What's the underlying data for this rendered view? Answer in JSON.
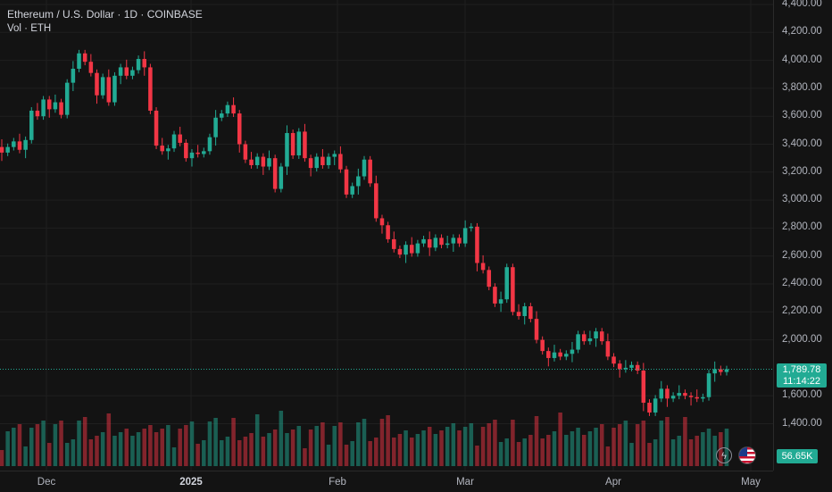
{
  "header": {
    "title": "Ethereum / U.S. Dollar · 1D · COINBASE",
    "volume_label": "Vol · ETH"
  },
  "y_axis": {
    "ticks": [
      "4,400.00",
      "4,200.00",
      "4,000.00",
      "3,800.00",
      "3,600.00",
      "3,400.00",
      "3,200.00",
      "3,000.00",
      "2,800.00",
      "2,600.00",
      "2,400.00",
      "2,200.00",
      "2,000.00",
      "1,600.00",
      "1,400.00"
    ]
  },
  "x_axis": {
    "ticks": [
      {
        "label": "Dec"
      },
      {
        "label": "2025",
        "bold": true
      },
      {
        "label": "Feb"
      },
      {
        "label": "Mar"
      },
      {
        "label": "Apr"
      },
      {
        "label": "May"
      }
    ]
  },
  "current_price": {
    "value": "1,789.78",
    "countdown": "11:14:22"
  },
  "volume_tag": "56.65K",
  "colors": {
    "up": "#22ab94",
    "down": "#f23645",
    "background": "#131313",
    "grid": "#1f1f1f",
    "up_vol": "#22ab9480",
    "down_vol": "#f2364580"
  },
  "icons": {
    "flash": "flash-icon",
    "flag": "us-flag-icon"
  },
  "chart_data": {
    "type": "candlestick",
    "symbol": "ETHUSD",
    "interval": "1D",
    "ylim": [
      1200,
      4400
    ],
    "candles": [
      {
        "o": 3380,
        "c": 3340
      },
      {
        "o": 3340,
        "c": 3380
      },
      {
        "o": 3380,
        "c": 3420
      },
      {
        "o": 3420,
        "c": 3360
      },
      {
        "o": 3360,
        "c": 3430
      },
      {
        "o": 3430,
        "c": 3640
      },
      {
        "o": 3640,
        "c": 3600
      },
      {
        "o": 3600,
        "c": 3720
      },
      {
        "o": 3720,
        "c": 3650
      },
      {
        "o": 3650,
        "c": 3700
      },
      {
        "o": 3700,
        "c": 3610
      },
      {
        "o": 3610,
        "c": 3840
      },
      {
        "o": 3840,
        "c": 3940
      },
      {
        "o": 3940,
        "c": 4050
      },
      {
        "o": 4050,
        "c": 3990
      },
      {
        "o": 3990,
        "c": 3910
      },
      {
        "o": 3910,
        "c": 3750
      },
      {
        "o": 3750,
        "c": 3880
      },
      {
        "o": 3880,
        "c": 3700
      },
      {
        "o": 3700,
        "c": 3890
      },
      {
        "o": 3890,
        "c": 3950
      },
      {
        "o": 3950,
        "c": 3890
      },
      {
        "o": 3890,
        "c": 3930
      },
      {
        "o": 3930,
        "c": 4010
      },
      {
        "o": 4010,
        "c": 3950
      },
      {
        "o": 3950,
        "c": 3640
      },
      {
        "o": 3640,
        "c": 3390
      },
      {
        "o": 3390,
        "c": 3350
      },
      {
        "o": 3350,
        "c": 3370
      },
      {
        "o": 3370,
        "c": 3470
      },
      {
        "o": 3470,
        "c": 3410
      },
      {
        "o": 3410,
        "c": 3300
      },
      {
        "o": 3300,
        "c": 3340
      },
      {
        "o": 3340,
        "c": 3330
      },
      {
        "o": 3330,
        "c": 3350
      },
      {
        "o": 3350,
        "c": 3450
      },
      {
        "o": 3450,
        "c": 3590
      },
      {
        "o": 3590,
        "c": 3620
      },
      {
        "o": 3620,
        "c": 3680
      },
      {
        "o": 3680,
        "c": 3620
      },
      {
        "o": 3620,
        "c": 3400
      },
      {
        "o": 3400,
        "c": 3290
      },
      {
        "o": 3290,
        "c": 3250
      },
      {
        "o": 3250,
        "c": 3310
      },
      {
        "o": 3310,
        "c": 3240
      },
      {
        "o": 3240,
        "c": 3300
      },
      {
        "o": 3300,
        "c": 3080
      },
      {
        "o": 3080,
        "c": 3240
      },
      {
        "o": 3240,
        "c": 3480
      },
      {
        "o": 3480,
        "c": 3320
      },
      {
        "o": 3320,
        "c": 3490
      },
      {
        "o": 3490,
        "c": 3300
      },
      {
        "o": 3300,
        "c": 3230
      },
      {
        "o": 3230,
        "c": 3310
      },
      {
        "o": 3310,
        "c": 3250
      },
      {
        "o": 3250,
        "c": 3310
      },
      {
        "o": 3310,
        "c": 3330
      },
      {
        "o": 3330,
        "c": 3220
      },
      {
        "o": 3220,
        "c": 3040
      },
      {
        "o": 3040,
        "c": 3100
      },
      {
        "o": 3100,
        "c": 3170
      },
      {
        "o": 3170,
        "c": 3290
      },
      {
        "o": 3290,
        "c": 3120
      },
      {
        "o": 3120,
        "c": 2870
      },
      {
        "o": 2870,
        "c": 2820
      },
      {
        "o": 2820,
        "c": 2720
      },
      {
        "o": 2720,
        "c": 2650
      },
      {
        "o": 2650,
        "c": 2610
      },
      {
        "o": 2610,
        "c": 2680
      },
      {
        "o": 2680,
        "c": 2620
      },
      {
        "o": 2620,
        "c": 2690
      },
      {
        "o": 2690,
        "c": 2720
      },
      {
        "o": 2720,
        "c": 2660
      },
      {
        "o": 2660,
        "c": 2730
      },
      {
        "o": 2730,
        "c": 2680
      },
      {
        "o": 2680,
        "c": 2690
      },
      {
        "o": 2690,
        "c": 2730
      },
      {
        "o": 2730,
        "c": 2690
      },
      {
        "o": 2690,
        "c": 2800
      },
      {
        "o": 2800,
        "c": 2810
      },
      {
        "o": 2810,
        "c": 2550
      },
      {
        "o": 2550,
        "c": 2500
      },
      {
        "o": 2500,
        "c": 2380
      },
      {
        "o": 2380,
        "c": 2260
      },
      {
        "o": 2260,
        "c": 2290
      },
      {
        "o": 2290,
        "c": 2520
      },
      {
        "o": 2520,
        "c": 2200
      },
      {
        "o": 2200,
        "c": 2170
      },
      {
        "o": 2170,
        "c": 2240
      },
      {
        "o": 2240,
        "c": 2150
      },
      {
        "o": 2150,
        "c": 2000
      },
      {
        "o": 2000,
        "c": 1920
      },
      {
        "o": 1920,
        "c": 1870
      },
      {
        "o": 1870,
        "c": 1910
      },
      {
        "o": 1910,
        "c": 1880
      },
      {
        "o": 1880,
        "c": 1900
      },
      {
        "o": 1900,
        "c": 1930
      },
      {
        "o": 1930,
        "c": 2040
      },
      {
        "o": 2040,
        "c": 1990
      },
      {
        "o": 1990,
        "c": 2010
      },
      {
        "o": 2010,
        "c": 2060
      },
      {
        "o": 2060,
        "c": 1990
      },
      {
        "o": 1990,
        "c": 1880
      },
      {
        "o": 1880,
        "c": 1830
      },
      {
        "o": 1830,
        "c": 1790
      },
      {
        "o": 1790,
        "c": 1800
      },
      {
        "o": 1800,
        "c": 1820
      },
      {
        "o": 1820,
        "c": 1780
      },
      {
        "o": 1780,
        "c": 1550
      },
      {
        "o": 1550,
        "c": 1480
      },
      {
        "o": 1480,
        "c": 1580
      },
      {
        "o": 1580,
        "c": 1650
      },
      {
        "o": 1650,
        "c": 1580
      },
      {
        "o": 1580,
        "c": 1600
      },
      {
        "o": 1600,
        "c": 1620
      },
      {
        "o": 1620,
        "c": 1600
      },
      {
        "o": 1600,
        "c": 1590
      },
      {
        "o": 1590,
        "c": 1580
      },
      {
        "o": 1580,
        "c": 1590
      },
      {
        "o": 1590,
        "c": 1760
      },
      {
        "o": 1760,
        "c": 1790
      },
      {
        "o": 1790,
        "c": 1770
      },
      {
        "o": 1770,
        "c": 1789.78
      }
    ]
  }
}
